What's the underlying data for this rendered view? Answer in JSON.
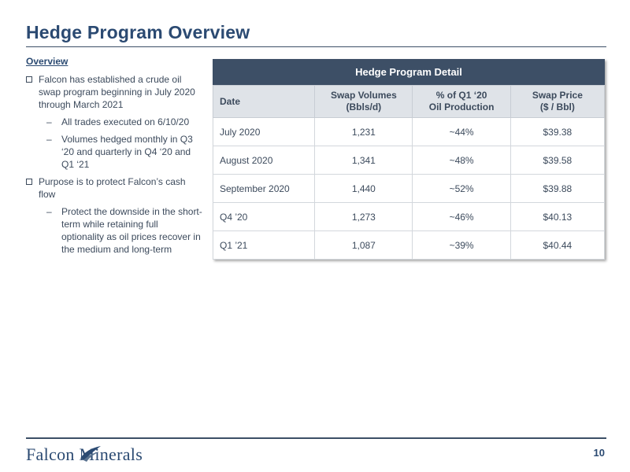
{
  "page": {
    "title": "Hedge Program Overview",
    "page_number": "10",
    "logo_text": "Falcon Minerals"
  },
  "overview": {
    "heading": "Overview",
    "bullets": [
      {
        "text": "Falcon has established a crude oil swap program beginning in July 2020 through March 2021",
        "subs": [
          "All trades executed on 6/10/20",
          "Volumes hedged monthly in Q3 ‘20 and quarterly in Q4 ‘20 and Q1 ‘21"
        ]
      },
      {
        "text": "Purpose is to protect Falcon’s cash flow",
        "subs": [
          "Protect the downside in the short-term while retaining full optionality as oil prices recover in the medium and long-term"
        ]
      }
    ]
  },
  "table": {
    "title": "Hedge Program Detail",
    "headers": {
      "date": "Date",
      "volume_line1": "Swap Volumes",
      "volume_line2": "(Bbls/d)",
      "pct_line1": "% of Q1 ‘20",
      "pct_line2": "Oil Production",
      "price_line1": "Swap Price",
      "price_line2": "($ / Bbl)"
    },
    "rows": [
      {
        "date": "July 2020",
        "volume": "1,231",
        "pct": "~44%",
        "price": "$39.38"
      },
      {
        "date": "August 2020",
        "volume": "1,341",
        "pct": "~48%",
        "price": "$39.58"
      },
      {
        "date": "September 2020",
        "volume": "1,440",
        "pct": "~52%",
        "price": "$39.88"
      },
      {
        "date": "Q4 ’20",
        "volume": "1,273",
        "pct": "~46%",
        "price": "$40.13"
      },
      {
        "date": "Q1 ’21",
        "volume": "1,087",
        "pct": "~39%",
        "price": "$40.44"
      }
    ]
  },
  "colors": {
    "title": "#2b4a72",
    "table_header": "#3d4f66",
    "column_header": "#dfe3e8"
  }
}
